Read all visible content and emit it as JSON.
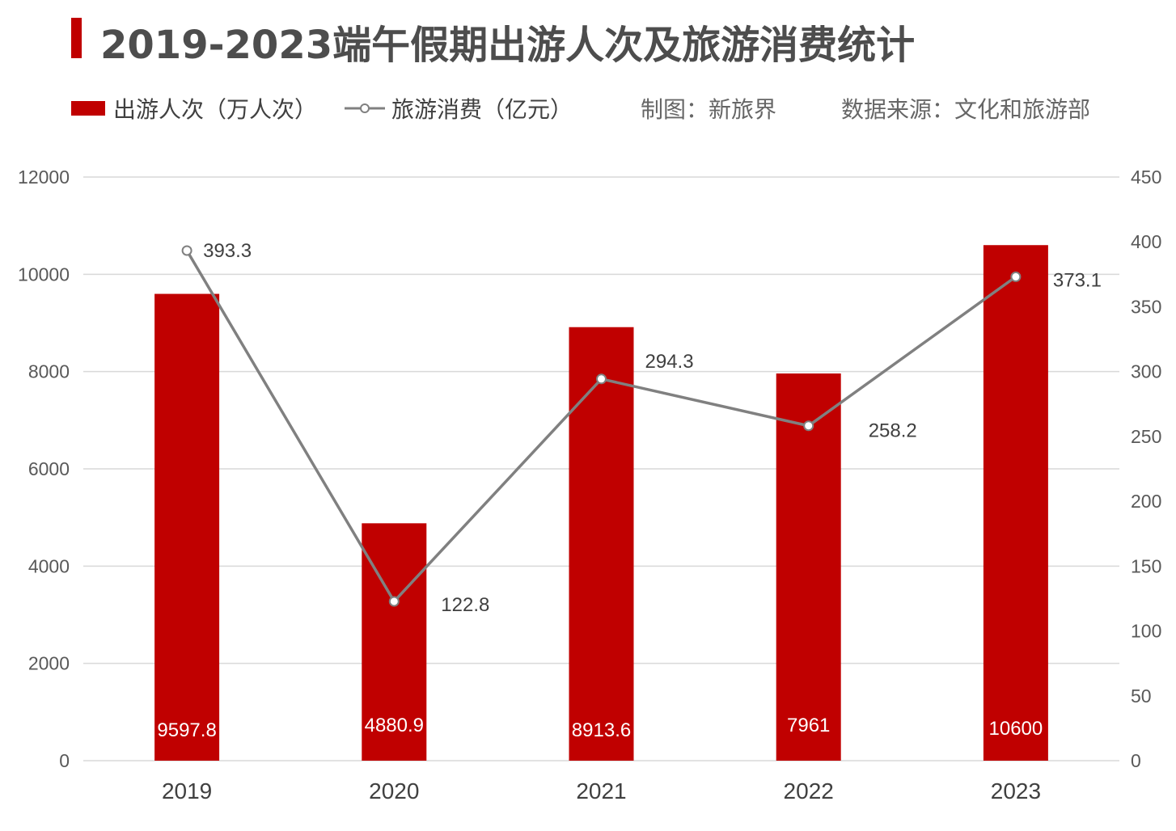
{
  "header": {
    "title": "2019-2023端午假期出游人次及旅游消费统计",
    "credit": "制图：新旅界",
    "source": "数据来源：文化和旅游部"
  },
  "colors": {
    "accent": "#c00000",
    "line": "#808080",
    "grid": "#d9d9d9"
  },
  "chart_data": {
    "type": "bar",
    "title": "2019-2023端午假期出游人次及旅游消费统计",
    "categories": [
      "2019",
      "2020",
      "2021",
      "2022",
      "2023"
    ],
    "series": [
      {
        "name": "出游人次（万人次）",
        "type": "bar",
        "axis": "left",
        "values": [
          9597.8,
          4880.9,
          8913.6,
          7961,
          10600
        ],
        "labels": [
          "9597.8",
          "4880.9",
          "8913.6",
          "7961",
          "10600"
        ]
      },
      {
        "name": "旅游消费（亿元）",
        "type": "line",
        "axis": "right",
        "values": [
          393.3,
          122.8,
          294.3,
          258.2,
          373.1
        ],
        "labels": [
          "393.3",
          "122.8",
          "294.3",
          "258.2",
          "373.1"
        ]
      }
    ],
    "y_left": {
      "min": 0,
      "max": 12000,
      "ticks": [
        "0",
        "2000",
        "4000",
        "6000",
        "8000",
        "10000",
        "12000"
      ]
    },
    "y_right": {
      "min": 0,
      "max": 450,
      "ticks": [
        "0",
        "50",
        "100",
        "150",
        "200",
        "250",
        "300",
        "350",
        "400",
        "450"
      ]
    },
    "grid": true,
    "legend": "top-left"
  }
}
